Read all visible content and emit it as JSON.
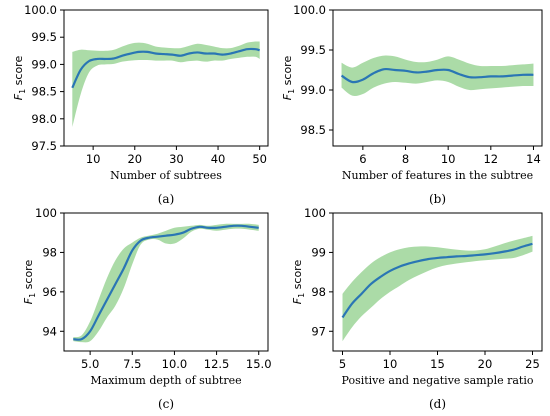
{
  "chart_data": [
    {
      "id": "a",
      "type": "line",
      "caption": "(a)",
      "xlabel": "Number of subtrees",
      "ylabel": "F1 score",
      "xlim": [
        3,
        52
      ],
      "ylim": [
        97.5,
        100.0
      ],
      "xticks": [
        10,
        20,
        30,
        40,
        50
      ],
      "xticklabels": [
        "10",
        "20",
        "30",
        "40",
        "50"
      ],
      "yticks": [
        97.5,
        98.0,
        98.5,
        99.0,
        99.5,
        100.0
      ],
      "yticklabels": [
        "97.5",
        "98.0",
        "98.5",
        "99.0",
        "99.5",
        "100.0"
      ],
      "series": [
        {
          "x": [
            5,
            7,
            9,
            11,
            13,
            15,
            17,
            19,
            21,
            23,
            25,
            27,
            29,
            31,
            33,
            35,
            37,
            39,
            41,
            43,
            45,
            47,
            49,
            50
          ],
          "mean": [
            98.57,
            98.9,
            99.06,
            99.1,
            99.1,
            99.11,
            99.16,
            99.2,
            99.23,
            99.23,
            99.2,
            99.19,
            99.18,
            99.16,
            99.2,
            99.22,
            99.2,
            99.2,
            99.18,
            99.2,
            99.24,
            99.28,
            99.28,
            99.26
          ],
          "upper": [
            99.23,
            99.27,
            99.26,
            99.25,
            99.25,
            99.27,
            99.33,
            99.38,
            99.4,
            99.38,
            99.33,
            99.31,
            99.3,
            99.3,
            99.34,
            99.38,
            99.36,
            99.33,
            99.3,
            99.3,
            99.34,
            99.4,
            99.42,
            99.42
          ],
          "lower": [
            97.85,
            98.45,
            98.85,
            98.98,
            99.0,
            99.01,
            99.05,
            99.07,
            99.08,
            99.08,
            99.07,
            99.07,
            99.07,
            99.04,
            99.06,
            99.07,
            99.05,
            99.07,
            99.07,
            99.1,
            99.12,
            99.14,
            99.14,
            99.1
          ]
        }
      ]
    },
    {
      "id": "b",
      "type": "line",
      "caption": "(b)",
      "xlabel": "Number of features in the subtree",
      "ylabel": "F1 score",
      "xlim": [
        4.6,
        14.4
      ],
      "ylim": [
        98.3,
        100.0
      ],
      "xticks": [
        6,
        8,
        10,
        12,
        14
      ],
      "xticklabels": [
        "6",
        "8",
        "10",
        "12",
        "14"
      ],
      "yticks": [
        98.5,
        99.0,
        99.5,
        100.0
      ],
      "yticklabels": [
        "98.5",
        "99.0",
        "99.5",
        "100.0"
      ],
      "series": [
        {
          "x": [
            5,
            5.5,
            6,
            6.5,
            7,
            7.5,
            8,
            8.5,
            9,
            9.5,
            10,
            10.5,
            11,
            11.5,
            12,
            12.5,
            13,
            13.5,
            14
          ],
          "mean": [
            99.18,
            99.1,
            99.13,
            99.21,
            99.26,
            99.25,
            99.24,
            99.22,
            99.23,
            99.25,
            99.25,
            99.2,
            99.16,
            99.16,
            99.17,
            99.17,
            99.18,
            99.19,
            99.19
          ],
          "upper": [
            99.34,
            99.28,
            99.34,
            99.4,
            99.43,
            99.42,
            99.38,
            99.35,
            99.35,
            99.38,
            99.42,
            99.38,
            99.33,
            99.3,
            99.3,
            99.3,
            99.31,
            99.32,
            99.33
          ],
          "lower": [
            99.03,
            98.93,
            98.95,
            99.03,
            99.08,
            99.1,
            99.09,
            99.08,
            99.1,
            99.12,
            99.1,
            99.04,
            99.0,
            99.01,
            99.02,
            99.03,
            99.04,
            99.05,
            99.05
          ]
        }
      ]
    },
    {
      "id": "c",
      "type": "line",
      "caption": "(c)",
      "xlabel": "Maximum depth of subtree",
      "ylabel": "F1 score",
      "xlim": [
        3.45,
        15.55
      ],
      "ylim": [
        93.0,
        100.0
      ],
      "xticks": [
        5.0,
        7.5,
        10.0,
        12.5,
        15.0
      ],
      "xticklabels": [
        "5.0",
        "7.5",
        "10.0",
        "12.5",
        "15.0"
      ],
      "yticks": [
        94,
        96,
        98,
        100
      ],
      "yticklabels": [
        "94",
        "96",
        "98",
        "100"
      ],
      "series": [
        {
          "x": [
            4,
            4.5,
            5,
            5.5,
            6,
            6.5,
            7,
            7.5,
            8,
            8.5,
            9,
            9.5,
            10,
            10.5,
            11,
            11.5,
            12,
            12.5,
            13,
            13.5,
            14,
            14.5,
            15
          ],
          "mean": [
            93.6,
            93.6,
            94.0,
            94.8,
            95.6,
            96.4,
            97.2,
            98.1,
            98.6,
            98.75,
            98.8,
            98.85,
            98.9,
            99.0,
            99.2,
            99.3,
            99.25,
            99.25,
            99.3,
            99.35,
            99.35,
            99.3,
            99.25
          ],
          "upper": [
            93.7,
            93.8,
            94.5,
            95.6,
            96.7,
            97.6,
            98.2,
            98.5,
            98.75,
            98.85,
            98.95,
            99.1,
            99.25,
            99.3,
            99.35,
            99.4,
            99.35,
            99.4,
            99.45,
            99.45,
            99.45,
            99.45,
            99.4
          ],
          "lower": [
            93.5,
            93.45,
            93.5,
            94.0,
            94.7,
            95.3,
            96.2,
            97.4,
            98.4,
            98.65,
            98.65,
            98.45,
            98.45,
            98.7,
            99.05,
            99.2,
            99.15,
            99.1,
            99.15,
            99.2,
            99.2,
            99.15,
            99.1
          ]
        }
      ]
    },
    {
      "id": "d",
      "type": "line",
      "caption": "(d)",
      "xlabel": "Positive and negative sample ratio",
      "ylabel": "F1 score",
      "xlim": [
        4.0,
        26.0
      ],
      "ylim": [
        96.5,
        100.0
      ],
      "xticks": [
        5,
        10,
        15,
        20,
        25
      ],
      "xticklabels": [
        "5",
        "10",
        "15",
        "20",
        "25"
      ],
      "yticks": [
        97,
        98,
        99,
        100
      ],
      "yticklabels": [
        "97",
        "98",
        "99",
        "100"
      ],
      "series": [
        {
          "x": [
            5,
            6,
            7,
            8,
            9,
            10,
            11,
            12,
            13,
            14,
            15,
            16,
            17,
            18,
            19,
            20,
            21,
            22,
            23,
            24,
            25
          ],
          "mean": [
            97.35,
            97.7,
            97.95,
            98.2,
            98.38,
            98.53,
            98.64,
            98.72,
            98.78,
            98.83,
            98.86,
            98.88,
            98.9,
            98.91,
            98.93,
            98.95,
            98.98,
            99.02,
            99.07,
            99.15,
            99.22
          ],
          "upper": [
            97.95,
            98.25,
            98.5,
            98.72,
            98.88,
            99.0,
            99.08,
            99.13,
            99.15,
            99.15,
            99.13,
            99.1,
            99.07,
            99.05,
            99.05,
            99.08,
            99.15,
            99.23,
            99.3,
            99.36,
            99.42
          ],
          "lower": [
            96.75,
            97.1,
            97.38,
            97.6,
            97.82,
            98.0,
            98.15,
            98.3,
            98.42,
            98.53,
            98.62,
            98.68,
            98.72,
            98.75,
            98.78,
            98.8,
            98.82,
            98.84,
            98.86,
            98.93,
            99.02
          ]
        }
      ]
    }
  ]
}
